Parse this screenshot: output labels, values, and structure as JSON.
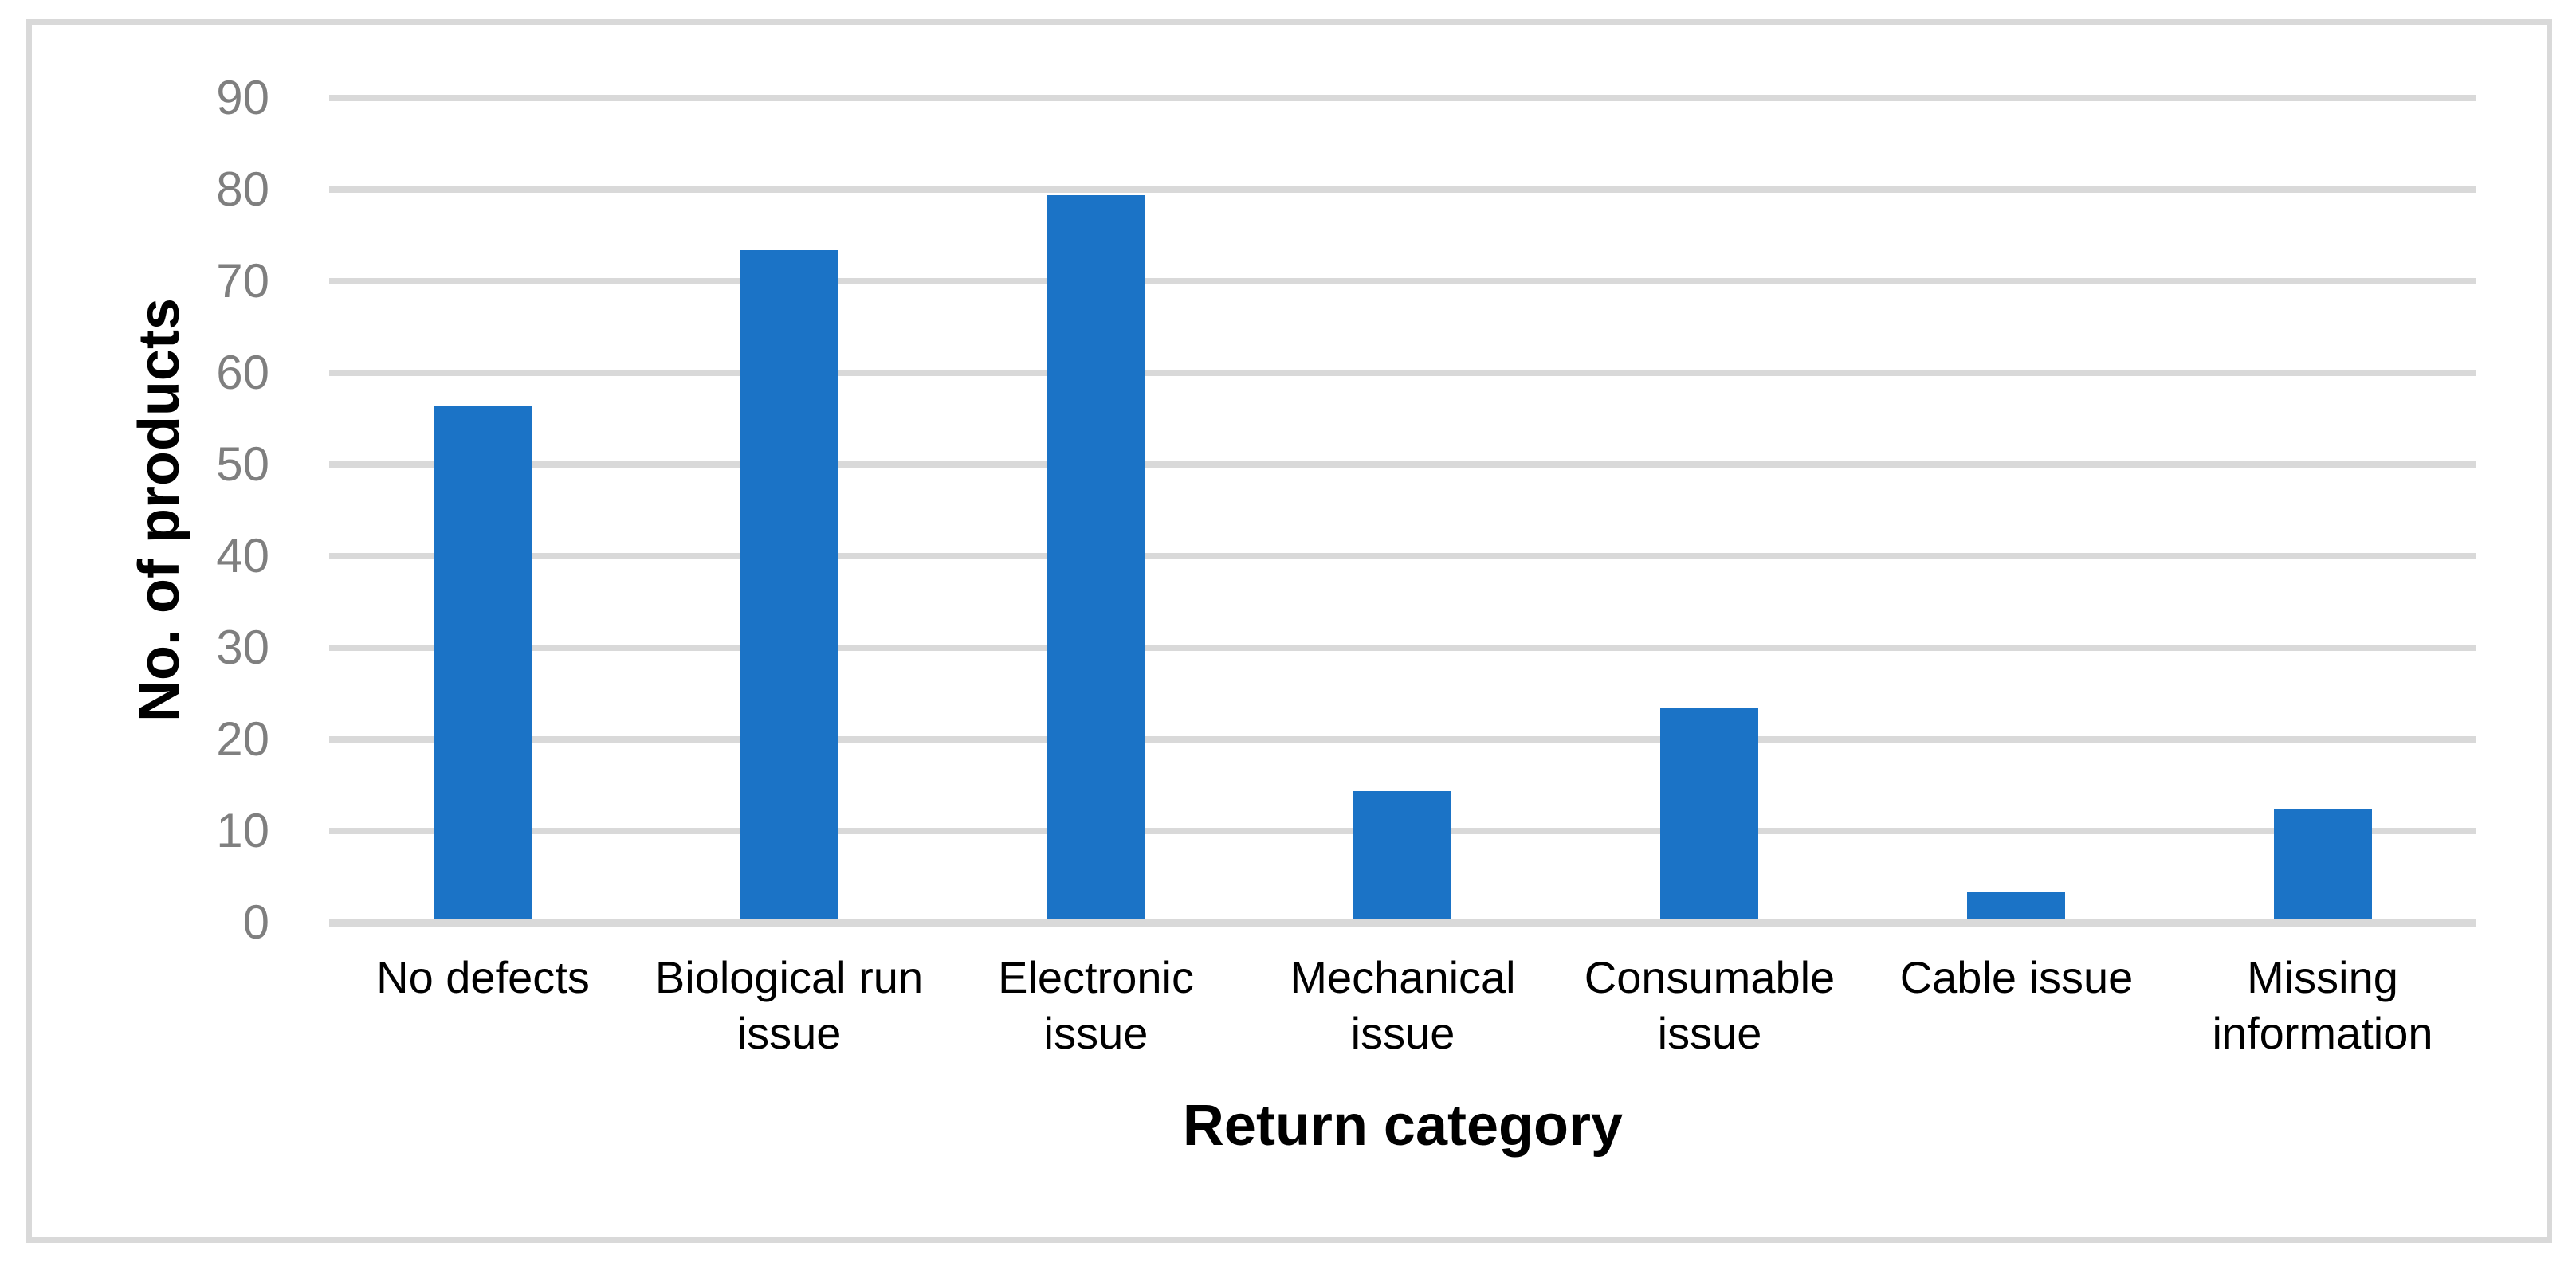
{
  "figure": {
    "background_color": "#FFFFFF",
    "border_color": "#D9D9D9"
  },
  "chart_data": {
    "type": "bar",
    "title": "",
    "categories": [
      "No defects",
      "Biological run issue",
      "Electronic issue",
      "Mechanical issue",
      "Consumable issue",
      "Cable issue",
      "Missing information"
    ],
    "category_labels_wrapped": [
      "No defects",
      "Biological run\nissue",
      "Electronic\nissue",
      "Mechanical\nissue",
      "Consumable\nissue",
      "Cable issue",
      "Missing\ninformation"
    ],
    "values": [
      56,
      73,
      79,
      14,
      23,
      3,
      12
    ],
    "xlabel": "Return category",
    "ylabel": "No. of products",
    "ylim": [
      0,
      90
    ],
    "yticks": [
      0,
      10,
      20,
      30,
      40,
      50,
      60,
      70,
      80,
      90
    ],
    "grid": true,
    "legend": false,
    "bar_color": "#1B73C6",
    "gridline_color": "#D9D9D9",
    "axis_line_color": "#D9D9D9",
    "tick_label_color": "#7F7F7F",
    "category_label_color": "#000000",
    "axis_title_color": "#000000"
  }
}
